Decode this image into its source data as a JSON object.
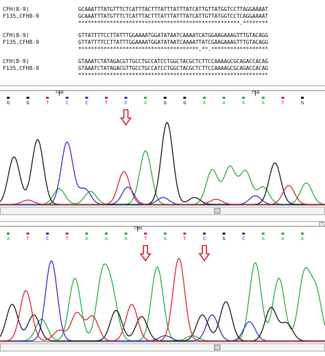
{
  "alignment": {
    "blocks": [
      {
        "rows": [
          {
            "label": "CFH(8-9)",
            "seq": "GCAAATTTATGTTTCTCATTTACTTTATTTATTTATCATTGTTATGGTCCTTAGGAAAAT"
          },
          {
            "label": "F135,CFH8-9",
            "seq": "GCAAATTTATGTTTCTCATTTACTTTATTTATTTATCATTGTTATGGTCCTCAGGAAAAT"
          },
          {
            "label": "",
            "seq": "***************************************************.********"
          }
        ]
      },
      {
        "rows": [
          {
            "label": "CFH(8-9)",
            "seq": "GTTATTTTCCTTATTTGGAAAATGGATATAATCAAAATCATGGAAGAAAGTTTGTACAGG"
          },
          {
            "label": "F135,CFH8-9",
            "seq": "GTTATTTTCCTTATTTGGAAAATGGATATAATCAAAATTATCGAAGAAAGTTTGTACAGG"
          },
          {
            "label": "",
            "seq": "**************************************.**.******************"
          }
        ]
      },
      {
        "rows": [
          {
            "label": "CFH(8-9)",
            "seq": "GTAAATCTATAGACGTTGCCTGCCATCCTGGCTACGCTCTTCCAAAAGCGCAGACCACAG"
          },
          {
            "label": "F135,CFH8-9",
            "seq": "GTAAATCTATAGACGTTGCCTGCCATCCTGGCTACGCTCTTCCAAAAGCGCAGACCACAG"
          },
          {
            "label": "",
            "seq": "************************************************************"
          }
        ]
      }
    ]
  },
  "chromatogram_top": {
    "position_labels": [
      {
        "text": "740",
        "index": 2.6
      },
      {
        "text": "750",
        "index": 12.6
      }
    ],
    "bases": [
      "G",
      "G",
      "T",
      "C",
      "C",
      "T",
      "C",
      "A",
      "G",
      "G",
      "A",
      "A",
      "A",
      "A",
      "T",
      "G"
    ],
    "arrows": [
      6
    ]
  },
  "chromatogram_bottom": {
    "position_labels": [
      {
        "text": "790",
        "index": 6.6
      }
    ],
    "bases": [
      "A",
      "T",
      "C",
      "T",
      "A",
      "A",
      "A",
      "T",
      "A",
      "T",
      "C",
      "G",
      "C",
      "A",
      "A",
      "A"
    ],
    "arrows": [
      7,
      10
    ]
  },
  "colors": {
    "A": "#1fae3a",
    "C": "#2a2acb",
    "G": "#111111",
    "T": "#e01c2c",
    "arrow": "#d21e2e",
    "axis": "#333333"
  }
}
